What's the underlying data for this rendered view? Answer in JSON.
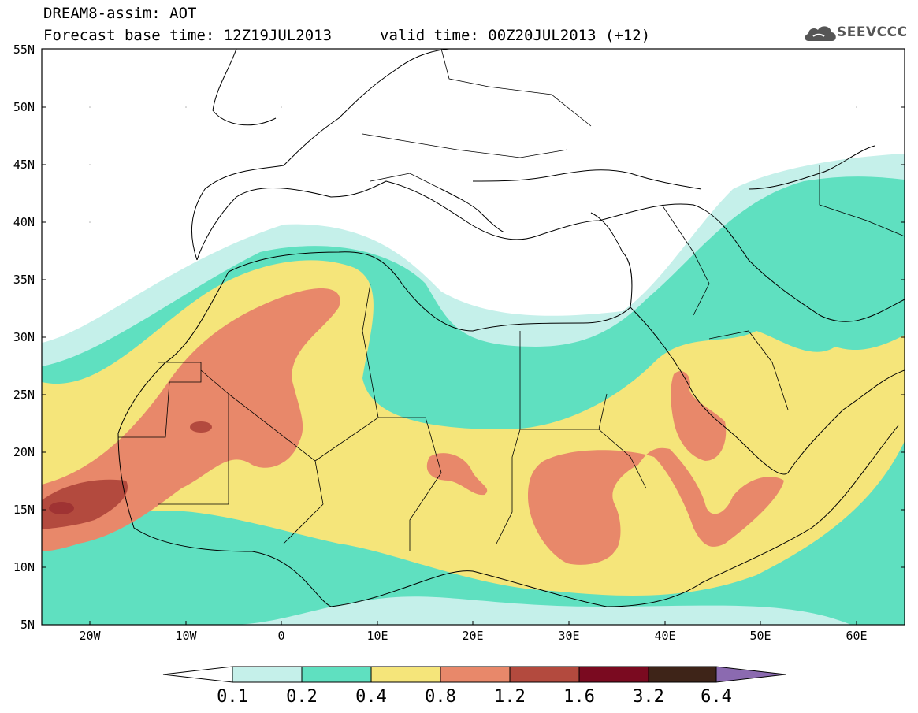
{
  "header": {
    "title_line1": "DREAM8-assim: AOT",
    "title_line2": "Forecast base time: 12Z19JUL2013",
    "valid_time": "valid time: 00Z20JUL2013 (+12)",
    "logo_text": "SEEVCCC"
  },
  "axes": {
    "lat_labels": [
      "55N",
      "50N",
      "45N",
      "40N",
      "35N",
      "30N",
      "25N",
      "20N",
      "15N",
      "10N",
      "5N"
    ],
    "lon_labels": [
      "20W",
      "10W",
      "0",
      "10E",
      "20E",
      "30E",
      "40E",
      "50E",
      "60E"
    ]
  },
  "legend": {
    "labels": [
      "0.1",
      "0.2",
      "0.4",
      "0.8",
      "1.2",
      "1.6",
      "3.2",
      "6.4"
    ],
    "colors": [
      "#ffffff",
      "#c5f0ea",
      "#5fe0c0",
      "#f5e57a",
      "#e8886a",
      "#b34a3e",
      "#7a0a20",
      "#3e2418",
      "#8b6ab0"
    ]
  },
  "map": {
    "region": "North Africa, Europe and Middle East",
    "lat_range": [
      "5N",
      "55N"
    ],
    "lon_range": [
      "25W",
      "65E"
    ],
    "colors": {
      "band_0_1": "#c5f0ea",
      "band_0_2": "#5fe0c0",
      "band_0_4": "#f5e57a",
      "band_0_8": "#e8886a",
      "band_1_2": "#b34a3e",
      "band_1_6": "#7a0a20"
    }
  }
}
